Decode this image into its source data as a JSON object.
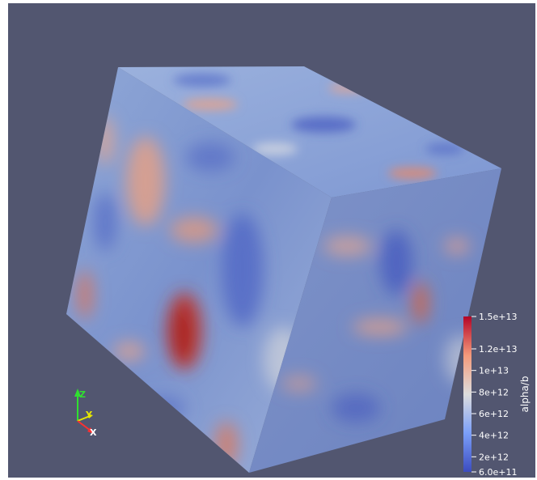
{
  "render_view": {
    "background_color": "#525670",
    "colormap": {
      "name": "Cool to Warm",
      "low_color": "#3b4cc0",
      "mid_color": "#dddddd",
      "high_color": "#b40426"
    }
  },
  "scalar_bar": {
    "title": "alpha/b",
    "ticks": [
      {
        "value": 15000000000000.0,
        "label": "1.5e+13"
      },
      {
        "value": 12000000000000.0,
        "label": "1.2e+13"
      },
      {
        "value": 10000000000000.0,
        "label": "1e+13"
      },
      {
        "value": 8000000000000.0,
        "label": "8e+12"
      },
      {
        "value": 6000000000000.0,
        "label": "6e+12"
      },
      {
        "value": 4000000000000.0,
        "label": "4e+12"
      },
      {
        "value": 2000000000000.0,
        "label": "2e+12"
      },
      {
        "value": 600000000000.0,
        "label": "6.0e+11"
      }
    ],
    "range": [
      600000000000.0,
      15000000000000.0
    ]
  },
  "orientation_axes": {
    "x_label": "X",
    "x_color": "#ff3030",
    "y_label": "Y",
    "y_color": "#e6e600",
    "z_label": "Z",
    "z_color": "#30e030"
  }
}
